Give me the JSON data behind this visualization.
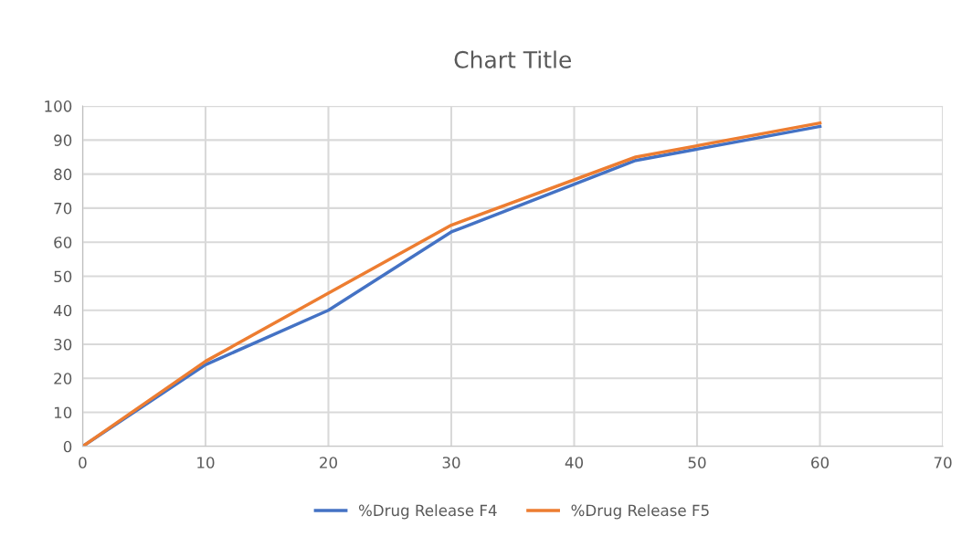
{
  "chart_data": {
    "type": "line",
    "title": "Chart Title",
    "x": [
      0,
      10,
      20,
      30,
      45,
      60
    ],
    "series": [
      {
        "name": "%Drug Release F4",
        "color": "#4472c4",
        "values": [
          0,
          24,
          40,
          63,
          84,
          94
        ]
      },
      {
        "name": "%Drug Release F5",
        "color": "#ed7d31",
        "values": [
          0,
          25,
          45,
          65,
          85,
          95
        ]
      }
    ],
    "xlim": [
      0,
      70
    ],
    "xticks": [
      0,
      10,
      20,
      30,
      40,
      50,
      60,
      70
    ],
    "ylim": [
      0,
      100
    ],
    "yticks": [
      0,
      10,
      20,
      30,
      40,
      50,
      60,
      70,
      80,
      90,
      100
    ],
    "grid": true,
    "legend": "bottom",
    "marker": "none",
    "line_style": "solid"
  }
}
